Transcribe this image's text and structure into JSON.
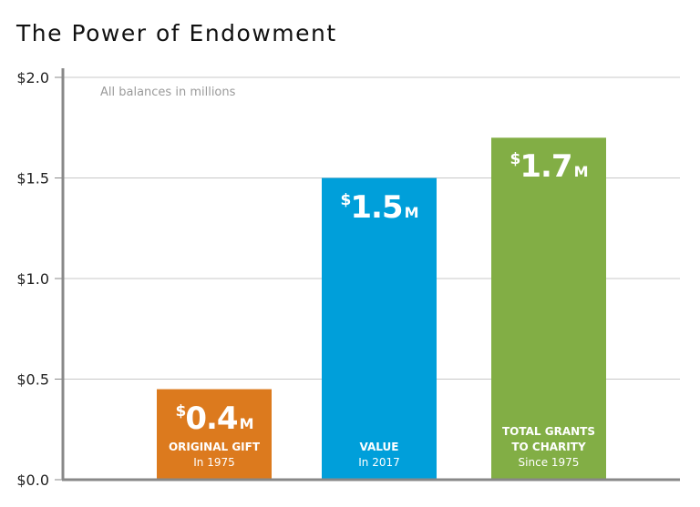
{
  "chart_data": {
    "type": "bar",
    "title": "The Power of Endowment",
    "annotation": "All balances in millions",
    "ylim": [
      0,
      2.0
    ],
    "yticks": [
      0.0,
      0.5,
      1.0,
      1.5,
      2.0
    ],
    "ytick_labels": [
      "$0.0",
      "$0.5",
      "$1.0",
      "$1.5",
      "$2.0"
    ],
    "grid": true,
    "categories": [
      {
        "line1": "ORIGINAL GIFT",
        "line2": "",
        "line3": "In 1975"
      },
      {
        "line1": "VALUE",
        "line2": "",
        "line3": "In 2017"
      },
      {
        "line1": "TOTAL GRANTS",
        "line2": "TO CHARITY",
        "line3": "Since 1975"
      }
    ],
    "values": [
      0.45,
      1.5,
      1.7
    ],
    "value_labels": [
      {
        "prefix": "$",
        "number": "0.4",
        "suffix": "M"
      },
      {
        "prefix": "$",
        "number": "1.5",
        "suffix": "M"
      },
      {
        "prefix": "$",
        "number": "1.7",
        "suffix": "M"
      }
    ],
    "colors": [
      "#DC7A1E",
      "#009FDA",
      "#82AE45"
    ]
  }
}
